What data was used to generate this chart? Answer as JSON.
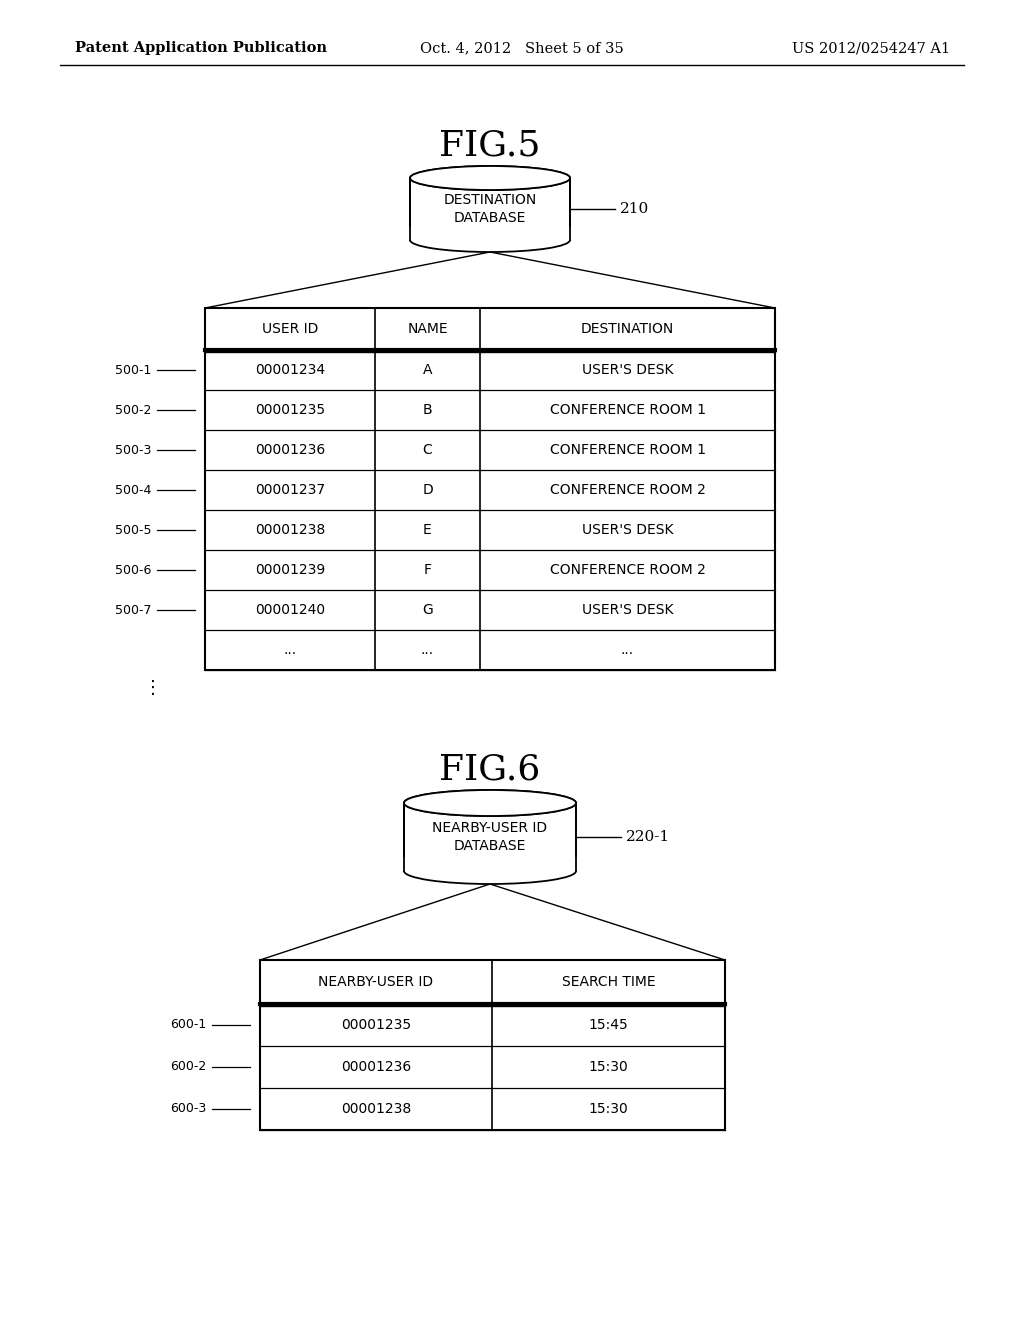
{
  "bg_color": "#ffffff",
  "header_text": {
    "left": "Patent Application Publication",
    "center": "Oct. 4, 2012   Sheet 5 of 35",
    "right": "US 2012/0254247 A1"
  },
  "fig5": {
    "title": "FIG.5",
    "db_label": "DESTINATION\nDATABASE",
    "db_ref": "210",
    "table_headers": [
      "USER ID",
      "NAME",
      "DESTINATION"
    ],
    "rows": [
      [
        "00001234",
        "A",
        "USER'S DESK"
      ],
      [
        "00001235",
        "B",
        "CONFERENCE ROOM 1"
      ],
      [
        "00001236",
        "C",
        "CONFERENCE ROOM 1"
      ],
      [
        "00001237",
        "D",
        "CONFERENCE ROOM 2"
      ],
      [
        "00001238",
        "E",
        "USER'S DESK"
      ],
      [
        "00001239",
        "F",
        "CONFERENCE ROOM 2"
      ],
      [
        "00001240",
        "G",
        "USER'S DESK"
      ],
      [
        "...",
        "...",
        "..."
      ]
    ],
    "row_labels": [
      "500-1",
      "500-2",
      "500-3",
      "500-4",
      "500-5",
      "500-6",
      "500-7",
      ""
    ],
    "ellipsis_label": "⋮"
  },
  "fig6": {
    "title": "FIG.6",
    "db_label": "NEARBY-USER ID\nDATABASE",
    "db_ref": "220-1",
    "table_headers": [
      "NEARBY-USER ID",
      "SEARCH TIME"
    ],
    "rows": [
      [
        "00001235",
        "15:45"
      ],
      [
        "00001236",
        "15:30"
      ],
      [
        "00001238",
        "15:30"
      ]
    ],
    "row_labels": [
      "600-1",
      "600-2",
      "600-3"
    ]
  }
}
